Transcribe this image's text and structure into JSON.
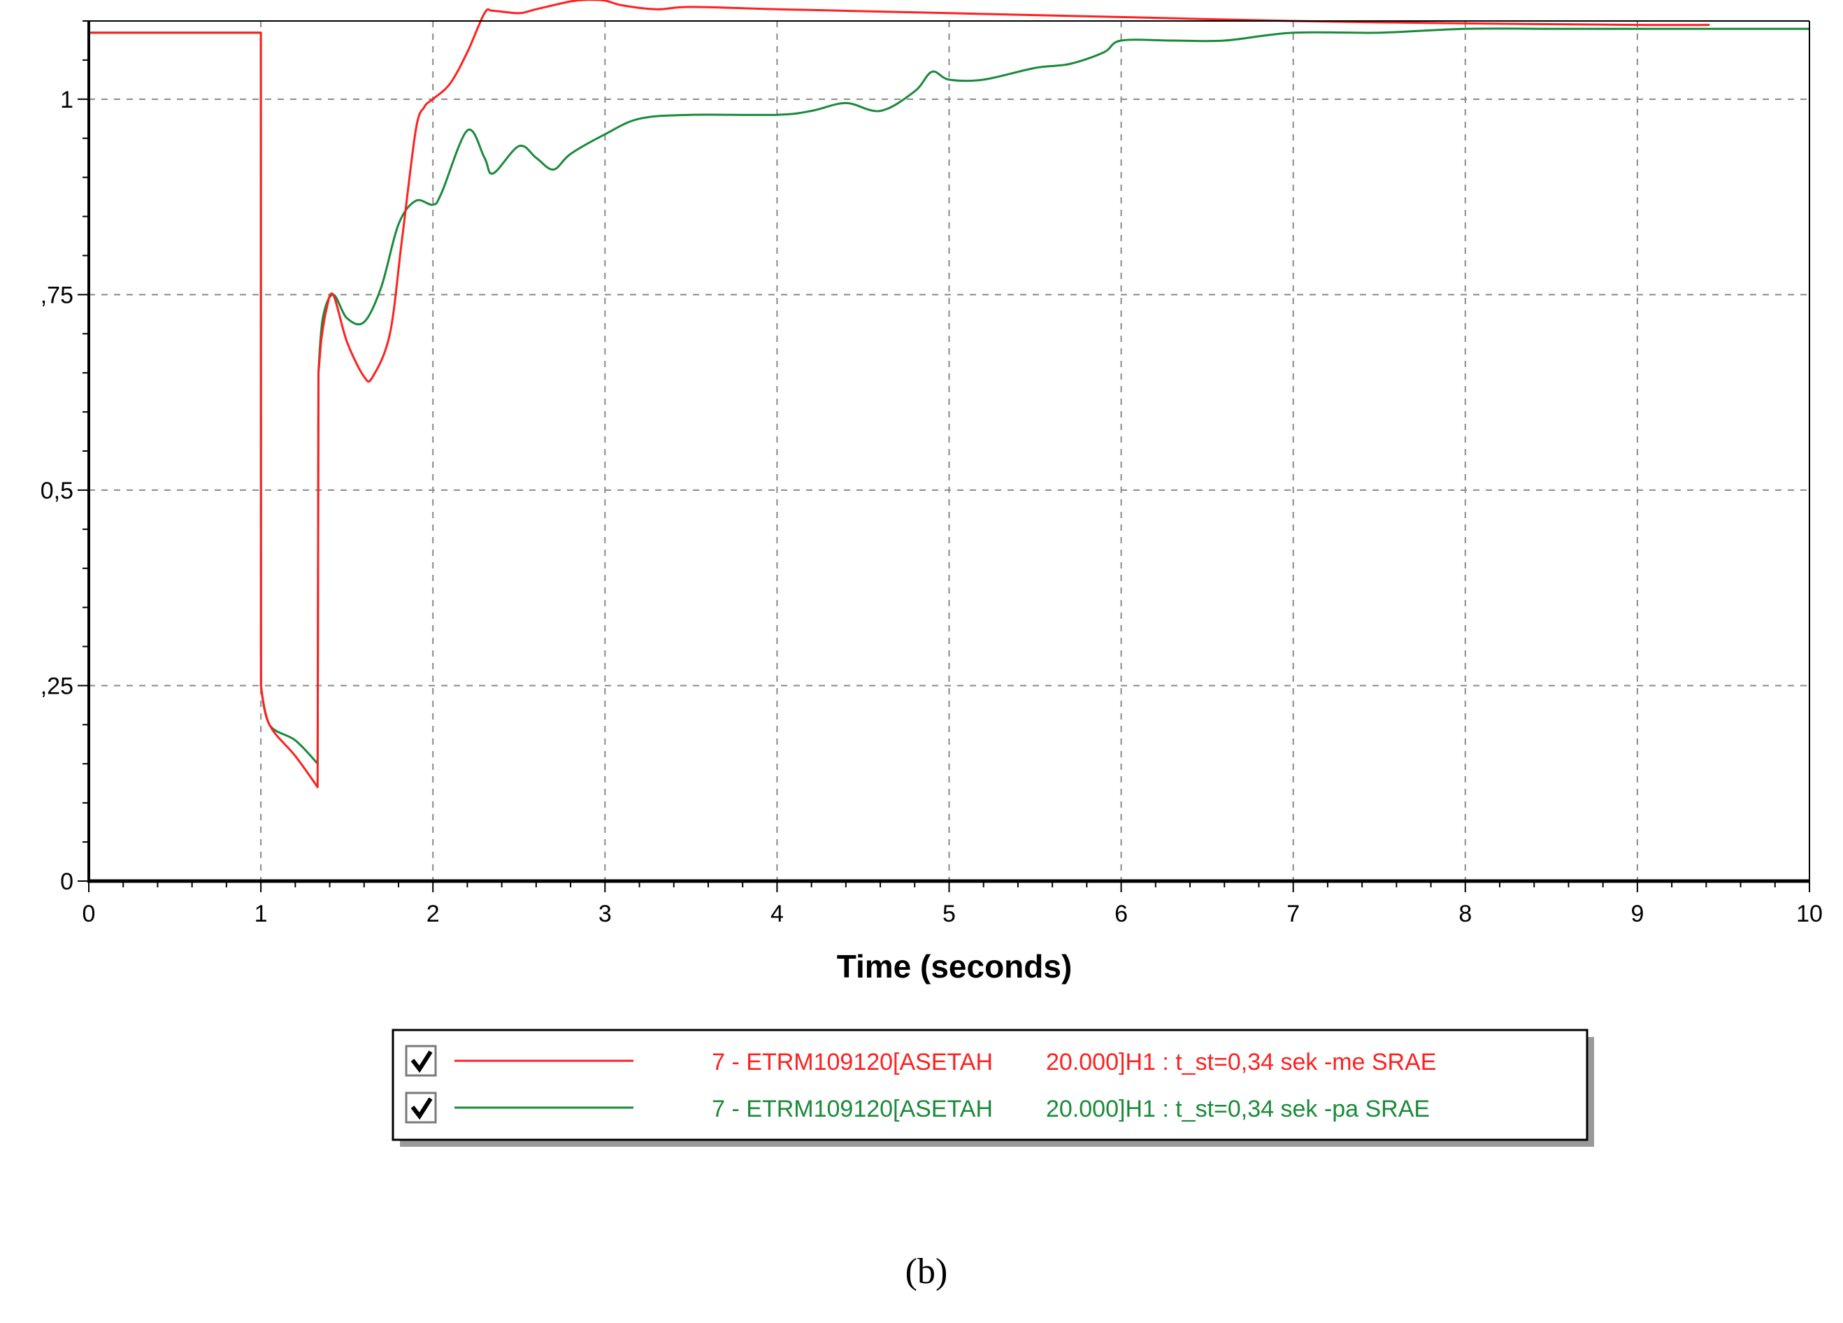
{
  "chart_data": {
    "type": "line",
    "title": "",
    "xlabel": "Time (seconds)",
    "ylabel": "",
    "xlim": [
      0,
      10
    ],
    "ylim": [
      0,
      1.0
    ],
    "x_ticks": [
      "0",
      "1",
      "2",
      "3",
      "4",
      "5",
      "6",
      "7",
      "8",
      "9",
      "10"
    ],
    "x_tick_values": [
      0,
      1,
      2,
      3,
      4,
      5,
      6,
      7,
      8,
      9,
      10
    ],
    "y_ticks": [
      "0",
      ",25",
      "0,5",
      ",75",
      "1"
    ],
    "y_tick_values": [
      0,
      0.25,
      0.5,
      0.75,
      1.0
    ],
    "grid": true,
    "legend_position": "bottom-center",
    "caption": "(b)",
    "series": [
      {
        "name_id": "7 - ETRM109120[ASETAH",
        "name_desc": "20.000]H1 : t_st=0,34 sek -me SRAE",
        "color": "#ff2020",
        "checked": true,
        "x": [
          0,
          1.0,
          1.001,
          1.05,
          1.2,
          1.33,
          1.335,
          1.35,
          1.38,
          1.42,
          1.5,
          1.6,
          1.65,
          1.75,
          1.82,
          1.9,
          1.95,
          2.0,
          2.1,
          2.2,
          2.3,
          2.35,
          2.5,
          2.6,
          2.8,
          2.9,
          3.0,
          3.1,
          3.3,
          3.5,
          4.0,
          5.0,
          6.0,
          7.0,
          8.0,
          9.0,
          9.42
        ],
        "y": [
          1.085,
          1.085,
          0.25,
          0.2,
          0.16,
          0.12,
          0.65,
          0.69,
          0.73,
          0.75,
          0.69,
          0.645,
          0.645,
          0.7,
          0.82,
          0.96,
          0.99,
          1.0,
          1.02,
          1.06,
          1.11,
          1.113,
          1.11,
          1.115,
          1.125,
          1.127,
          1.126,
          1.12,
          1.115,
          1.118,
          1.115,
          1.11,
          1.105,
          1.1,
          1.097,
          1.095,
          1.095
        ]
      },
      {
        "name_id": "7 - ETRM109120[ASETAH",
        "name_desc": "20.000]H1 : t_st=0,34 sek -pa SRAE",
        "color": "#1a8a3a",
        "checked": true,
        "x": [
          0,
          1.0,
          1.001,
          1.05,
          1.2,
          1.33,
          1.335,
          1.36,
          1.42,
          1.5,
          1.6,
          1.7,
          1.8,
          1.9,
          2.0,
          2.05,
          2.2,
          2.3,
          2.35,
          2.5,
          2.6,
          2.7,
          2.8,
          3.0,
          3.2,
          3.5,
          4.0,
          4.2,
          4.4,
          4.6,
          4.8,
          4.9,
          5.0,
          5.2,
          5.5,
          5.7,
          5.9,
          6.0,
          6.3,
          6.6,
          7.0,
          7.5,
          8.0,
          8.5,
          9.0,
          9.5,
          10.0
        ],
        "y": [
          1.085,
          1.085,
          0.25,
          0.2,
          0.18,
          0.15,
          0.65,
          0.72,
          0.75,
          0.72,
          0.715,
          0.76,
          0.84,
          0.87,
          0.865,
          0.88,
          0.96,
          0.925,
          0.905,
          0.94,
          0.925,
          0.91,
          0.93,
          0.955,
          0.975,
          0.98,
          0.98,
          0.985,
          0.995,
          0.985,
          1.01,
          1.035,
          1.025,
          1.025,
          1.04,
          1.045,
          1.06,
          1.075,
          1.075,
          1.075,
          1.085,
          1.085,
          1.09,
          1.09,
          1.09,
          1.09,
          1.09
        ]
      }
    ]
  }
}
